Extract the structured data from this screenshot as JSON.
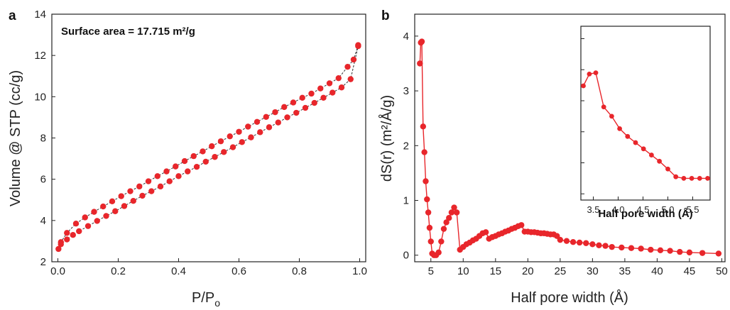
{
  "chart_data": [
    {
      "panel": "a",
      "type": "scatter",
      "annotation": "Surface area = 17.715 m²/g",
      "xlabel": "P/P",
      "xlabel_sub": "o",
      "ylabel": "Volume @ STP (cc/g)",
      "xlim": [
        -0.02,
        1.02
      ],
      "ylim": [
        2,
        14
      ],
      "xticks": [
        "0.0",
        "0.2",
        "0.4",
        "0.6",
        "0.8",
        "1.0"
      ],
      "yticks": [
        "2",
        "4",
        "6",
        "8",
        "10",
        "12",
        "14"
      ],
      "marker_color": "#e8262b",
      "series": [
        {
          "x": [
            0.002,
            0.01,
            0.03,
            0.05,
            0.07,
            0.1,
            0.13,
            0.16,
            0.19,
            0.22,
            0.25,
            0.28,
            0.31,
            0.34,
            0.37,
            0.4,
            0.43,
            0.46,
            0.49,
            0.52,
            0.55,
            0.58,
            0.61,
            0.64,
            0.67,
            0.7,
            0.73,
            0.76,
            0.79,
            0.82,
            0.85,
            0.88,
            0.91,
            0.94,
            0.97,
            0.995
          ],
          "y": [
            2.62,
            2.85,
            3.08,
            3.3,
            3.48,
            3.73,
            3.98,
            4.22,
            4.45,
            4.7,
            4.95,
            5.2,
            5.42,
            5.65,
            5.9,
            6.15,
            6.38,
            6.6,
            6.85,
            7.08,
            7.32,
            7.55,
            7.8,
            8.03,
            8.28,
            8.52,
            8.75,
            9.0,
            9.22,
            9.46,
            9.7,
            9.95,
            10.2,
            10.45,
            10.85,
            12.45
          ]
        },
        {
          "x": [
            0.995,
            0.98,
            0.96,
            0.93,
            0.9,
            0.87,
            0.84,
            0.81,
            0.78,
            0.75,
            0.72,
            0.69,
            0.66,
            0.63,
            0.6,
            0.57,
            0.54,
            0.51,
            0.48,
            0.45,
            0.42,
            0.39,
            0.36,
            0.33,
            0.3,
            0.27,
            0.24,
            0.21,
            0.18,
            0.15,
            0.12,
            0.09,
            0.06,
            0.03,
            0.01
          ],
          "y": [
            12.5,
            11.8,
            11.45,
            10.9,
            10.65,
            10.4,
            10.15,
            9.95,
            9.72,
            9.5,
            9.25,
            9.02,
            8.78,
            8.55,
            8.3,
            8.08,
            7.84,
            7.6,
            7.35,
            7.12,
            6.88,
            6.62,
            6.38,
            6.15,
            5.9,
            5.65,
            5.42,
            5.18,
            4.93,
            4.68,
            4.42,
            4.15,
            3.85,
            3.4,
            2.95
          ]
        }
      ]
    },
    {
      "panel": "b",
      "type": "line",
      "xlabel": "Half pore width (Å)",
      "ylabel": "dS(r) (m²/Å/g)",
      "xlim": [
        2.5,
        50.5
      ],
      "ylim": [
        -0.12,
        4.4
      ],
      "xticks": [
        "5",
        "10",
        "15",
        "20",
        "25",
        "30",
        "35",
        "40",
        "45",
        "50"
      ],
      "yticks": [
        "0",
        "1",
        "2",
        "3",
        "4"
      ],
      "marker_color": "#e8262b",
      "series": [
        {
          "x": [
            3.3,
            3.45,
            3.6,
            3.8,
            4.0,
            4.2,
            4.4,
            4.6,
            4.8,
            5.0,
            5.2,
            5.5,
            5.8,
            6.2,
            6.6,
            7.0,
            7.4,
            7.8,
            8.2,
            8.6,
            9.0,
            9.5,
            10.0,
            10.5,
            11.0,
            11.5,
            12.0,
            12.5,
            13.0,
            13.5,
            14.0,
            14.5,
            15.0,
            15.5,
            16.0,
            16.5,
            17.0,
            17.5,
            18.0,
            18.5,
            19.0,
            19.5,
            20.0,
            20.5,
            21.0,
            21.5,
            22.0,
            22.5,
            23.0,
            23.5,
            24.0,
            24.5,
            25.0,
            26.0,
            27.0,
            28.0,
            29.0,
            30.0,
            31.0,
            32.0,
            33.0,
            34.5,
            36.0,
            37.5,
            39.0,
            40.5,
            42.0,
            43.5,
            45.0,
            47.0,
            49.5
          ],
          "y": [
            3.5,
            3.88,
            3.9,
            2.35,
            1.88,
            1.35,
            1.02,
            0.78,
            0.5,
            0.25,
            0.03,
            0.0,
            0.0,
            0.05,
            0.25,
            0.48,
            0.6,
            0.68,
            0.78,
            0.87,
            0.78,
            0.1,
            0.15,
            0.2,
            0.23,
            0.27,
            0.3,
            0.35,
            0.4,
            0.42,
            0.3,
            0.33,
            0.35,
            0.38,
            0.4,
            0.43,
            0.45,
            0.48,
            0.5,
            0.53,
            0.55,
            0.43,
            0.43,
            0.42,
            0.42,
            0.41,
            0.4,
            0.4,
            0.39,
            0.38,
            0.38,
            0.35,
            0.28,
            0.26,
            0.24,
            0.23,
            0.22,
            0.2,
            0.18,
            0.17,
            0.15,
            0.14,
            0.13,
            0.12,
            0.1,
            0.09,
            0.08,
            0.06,
            0.05,
            0.04,
            0.03
          ]
        }
      ],
      "inset": {
        "xlabel": "Half pore width (Å)",
        "xlim": [
          3.25,
          5.85
        ],
        "ylim": [
          -0.2,
          5.4
        ],
        "xticks": [
          "3.5",
          "4.0",
          "4.5",
          "5.0",
          "5.5"
        ],
        "x": [
          3.3,
          3.42,
          3.55,
          3.71,
          3.87,
          4.03,
          4.19,
          4.35,
          4.51,
          4.67,
          4.83,
          5.0,
          5.16,
          5.32,
          5.48,
          5.64,
          5.8
        ],
        "y": [
          3.48,
          3.86,
          3.9,
          2.8,
          2.5,
          2.1,
          1.85,
          1.65,
          1.45,
          1.25,
          1.05,
          0.8,
          0.55,
          0.5,
          0.5,
          0.5,
          0.5
        ]
      }
    }
  ]
}
